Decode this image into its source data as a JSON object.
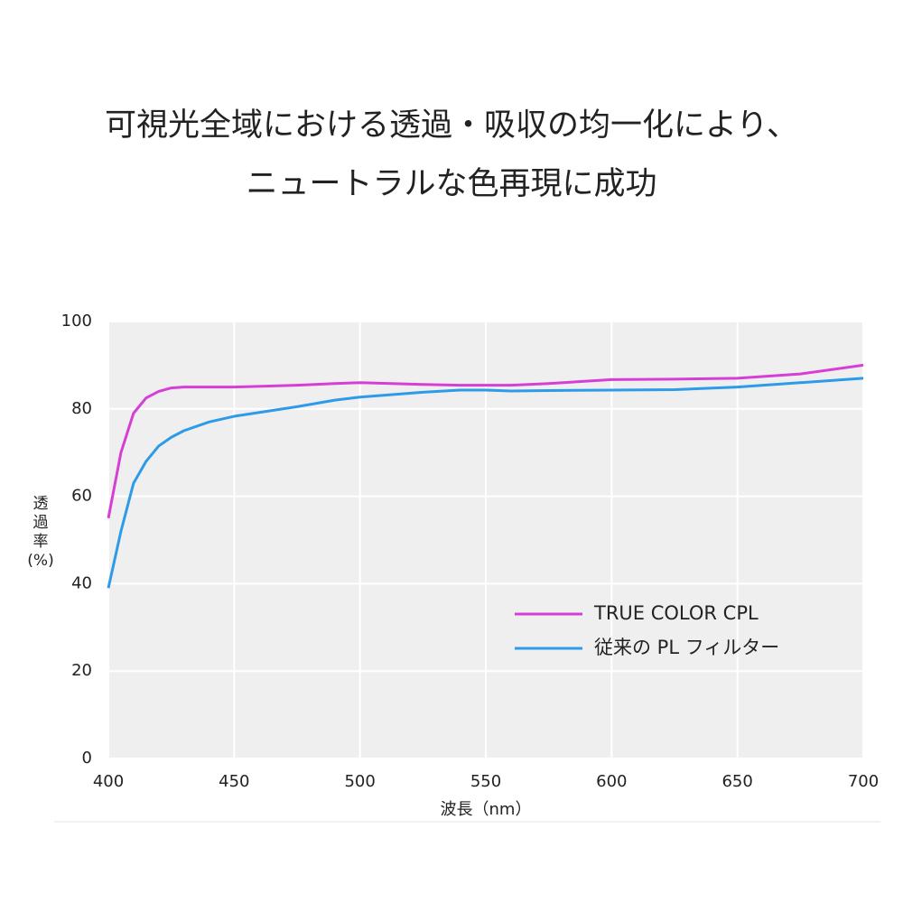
{
  "chart_data": {
    "type": "line",
    "title": [
      "可視光全域における透過・吸収の均一化により、",
      "ニュートラルな色再現に成功"
    ],
    "xlabel": "波長（nm）",
    "ylabel": "透過率(%)",
    "x": [
      400,
      405,
      410,
      415,
      420,
      425,
      430,
      440,
      450,
      475,
      490,
      500,
      525,
      540,
      550,
      560,
      575,
      600,
      625,
      650,
      675,
      700
    ],
    "series": [
      {
        "name": "TRUE COLOR CPL",
        "color": "#d63fd6",
        "values": [
          55,
          70,
          79,
          82.5,
          84,
          84.8,
          85,
          85,
          85,
          85.4,
          85.8,
          86,
          85.6,
          85.4,
          85.4,
          85.4,
          85.8,
          86.7,
          86.8,
          87,
          88,
          90
        ]
      },
      {
        "name": "従来の PL フィルター",
        "color": "#2d9be8",
        "values": [
          39,
          52,
          63,
          68,
          71.5,
          73.5,
          75,
          77,
          78.3,
          80.5,
          82,
          82.7,
          83.8,
          84.3,
          84.3,
          84.1,
          84.2,
          84.3,
          84.4,
          85,
          86,
          87
        ]
      }
    ],
    "xlim": [
      400,
      700
    ],
    "xticks": [
      400,
      450,
      500,
      550,
      600,
      650,
      700
    ],
    "ylim": [
      0,
      100
    ],
    "yticks": [
      0,
      20,
      40,
      60,
      80,
      100
    ],
    "grid": true,
    "legend": "lower right"
  }
}
